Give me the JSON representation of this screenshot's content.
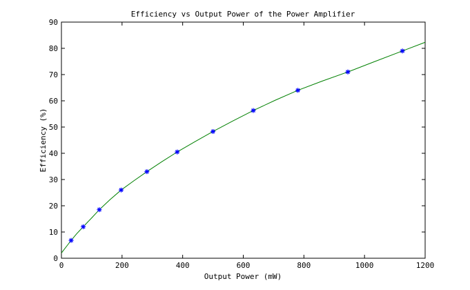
{
  "chart_data": {
    "type": "scatter",
    "title": "Efficiency vs Output Power of the Power Amplifier",
    "xlabel": "Output Power (mW)",
    "ylabel": "Efficiency (%)",
    "xlim": [
      0,
      1200
    ],
    "ylim": [
      0,
      90
    ],
    "xticks": [
      0,
      200,
      400,
      600,
      800,
      1000,
      1200
    ],
    "yticks": [
      0,
      10,
      20,
      30,
      40,
      50,
      60,
      70,
      80,
      90
    ],
    "grid": false,
    "series": [
      {
        "kind": "markers",
        "marker": "asterisk",
        "color": "#0000ff",
        "x": [
          32,
          72,
          125,
          197,
          282,
          382,
          500,
          633,
          780,
          945,
          1125
        ],
        "y": [
          6.8,
          12.0,
          18.5,
          26.0,
          33.0,
          40.5,
          48.3,
          56.3,
          64.0,
          71.0,
          79.0
        ]
      },
      {
        "kind": "line",
        "color": "#008000",
        "x": [
          0,
          10,
          20,
          32,
          50,
          72,
          100,
          125,
          160,
          197,
          240,
          282,
          330,
          382,
          440,
          500,
          565,
          633,
          705,
          780,
          860,
          945,
          1030,
          1125,
          1200
        ],
        "y": [
          2.0,
          3.5,
          5.0,
          6.8,
          9.3,
          12.0,
          15.4,
          18.5,
          22.3,
          26.0,
          29.6,
          33.0,
          36.7,
          40.5,
          44.4,
          48.3,
          52.3,
          56.3,
          60.2,
          64.0,
          67.5,
          71.0,
          74.8,
          79.0,
          82.3
        ]
      }
    ]
  }
}
